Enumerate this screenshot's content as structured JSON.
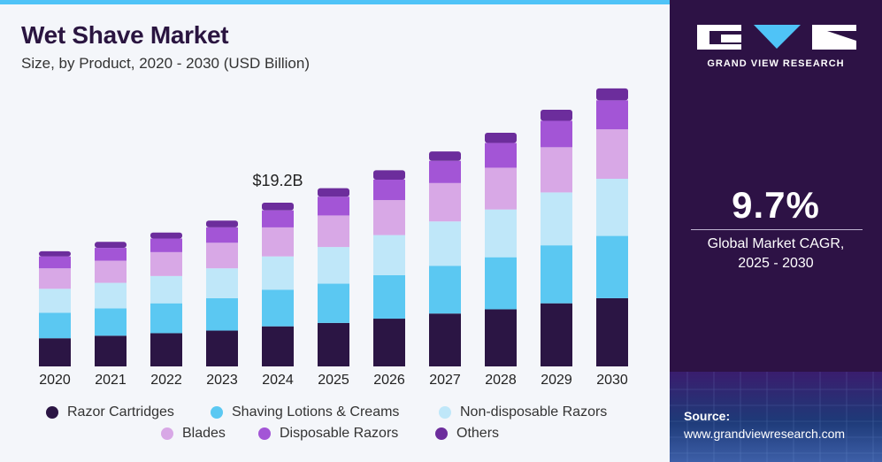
{
  "title": "Wet Shave Market",
  "subtitle": "Size, by Product, 2020 - 2030 (USD Billion)",
  "brand": {
    "name": "GRAND VIEW RESEARCH"
  },
  "cagr": {
    "value": "9.7%",
    "label_line1": "Global Market CAGR,",
    "label_line2": "2025 - 2030"
  },
  "source": {
    "label": "Source:",
    "url": "www.grandviewresearch.com"
  },
  "colors": {
    "razor_cartridges": "#2b1544",
    "shaving_lotions": "#5bc8f2",
    "non_disposable": "#bfe7f9",
    "blades": "#d8a8e6",
    "disposable_razors": "#a355d6",
    "others": "#6c2d9c",
    "title": "#2a1540",
    "side_panel": "#2d1245",
    "accent": "#4fc3f7"
  },
  "chart_data": {
    "type": "bar",
    "stacked": true,
    "title": "Wet Shave Market",
    "subtitle": "Size, by Product, 2020 - 2030 (USD Billion)",
    "xlabel": "",
    "ylabel": "",
    "categories": [
      "2020",
      "2021",
      "2022",
      "2023",
      "2024",
      "2025",
      "2026",
      "2027",
      "2028",
      "2029",
      "2030"
    ],
    "ylim": [
      0,
      33
    ],
    "grid": false,
    "legend": "bottom",
    "series": [
      {
        "name": "Razor Cartridges",
        "color": "#2b1544",
        "values": [
          3.3,
          3.6,
          3.9,
          4.2,
          4.7,
          5.1,
          5.6,
          6.2,
          6.7,
          7.4,
          8.0
        ]
      },
      {
        "name": "Shaving Lotions & Creams",
        "color": "#5bc8f2",
        "values": [
          3.0,
          3.2,
          3.5,
          3.8,
          4.3,
          4.6,
          5.1,
          5.6,
          6.1,
          6.8,
          7.3
        ]
      },
      {
        "name": "Non-disposable Razors",
        "color": "#bfe7f9",
        "values": [
          2.8,
          3.0,
          3.2,
          3.5,
          3.9,
          4.3,
          4.7,
          5.2,
          5.6,
          6.2,
          6.7
        ]
      },
      {
        "name": "Blades",
        "color": "#d8a8e6",
        "values": [
          2.4,
          2.6,
          2.8,
          3.0,
          3.4,
          3.7,
          4.1,
          4.5,
          4.9,
          5.3,
          5.8
        ]
      },
      {
        "name": "Disposable Razors",
        "color": "#a355d6",
        "values": [
          1.4,
          1.5,
          1.6,
          1.8,
          2.0,
          2.2,
          2.4,
          2.6,
          2.9,
          3.1,
          3.4
        ]
      },
      {
        "name": "Others",
        "color": "#6c2d9c",
        "values": [
          0.6,
          0.7,
          0.7,
          0.8,
          0.9,
          1.0,
          1.1,
          1.1,
          1.2,
          1.3,
          1.4
        ]
      }
    ],
    "annotations": [
      {
        "category": "2024",
        "text": "$19.2B"
      }
    ]
  }
}
